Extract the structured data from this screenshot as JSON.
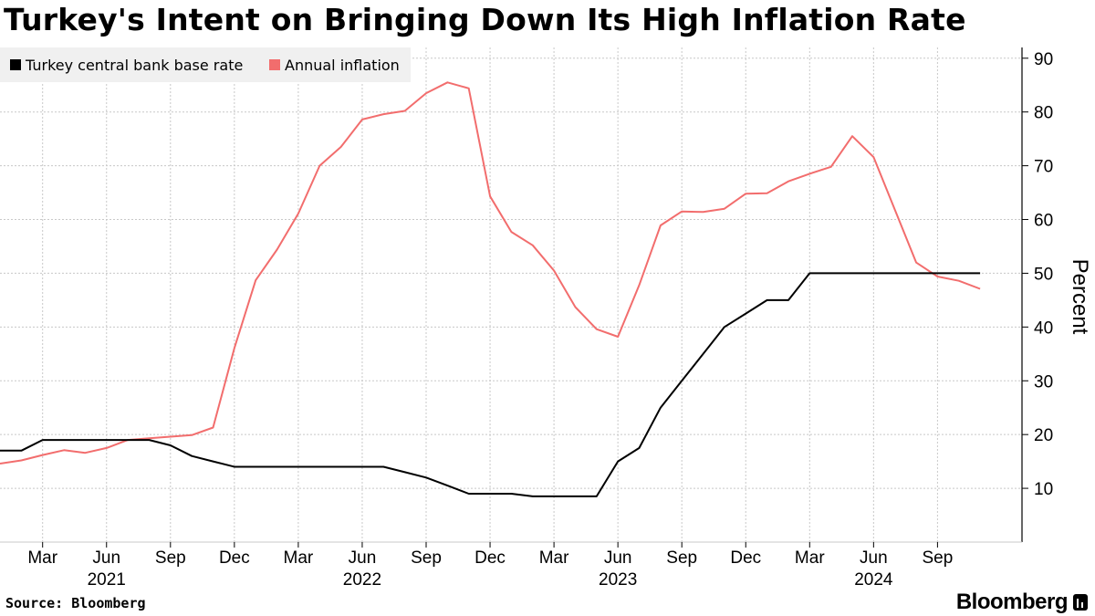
{
  "chart_data": {
    "type": "line",
    "title": "Turkey's Intent on Bringing Down Its High Inflation Rate",
    "ylabel": "Percent",
    "xlabel": "",
    "ylim": [
      0,
      92
    ],
    "yticks": [
      10,
      20,
      30,
      40,
      50,
      60,
      70,
      80,
      90
    ],
    "x_month_ticks": [
      "Mar",
      "Jun",
      "Sep",
      "Dec",
      "Mar",
      "Jun",
      "Sep",
      "Dec",
      "Mar",
      "Jun",
      "Sep",
      "Dec",
      "Mar",
      "Jun",
      "Sep"
    ],
    "x_year_labels": [
      "2021",
      "2022",
      "2023",
      "2024"
    ],
    "x": [
      "2021-01",
      "2021-02",
      "2021-03",
      "2021-04",
      "2021-05",
      "2021-06",
      "2021-07",
      "2021-08",
      "2021-09",
      "2021-10",
      "2021-11",
      "2021-12",
      "2022-01",
      "2022-02",
      "2022-03",
      "2022-04",
      "2022-05",
      "2022-06",
      "2022-07",
      "2022-08",
      "2022-09",
      "2022-10",
      "2022-11",
      "2022-12",
      "2023-01",
      "2023-02",
      "2023-03",
      "2023-04",
      "2023-05",
      "2023-06",
      "2023-07",
      "2023-08",
      "2023-09",
      "2023-10",
      "2023-11",
      "2023-12",
      "2024-01",
      "2024-02",
      "2024-03",
      "2024-04",
      "2024-05",
      "2024-06",
      "2024-07",
      "2024-08",
      "2024-09",
      "2024-10",
      "2024-11"
    ],
    "legend_position": "top-left",
    "series": [
      {
        "name": "Turkey central bank base rate",
        "color": "#000000",
        "values": [
          17,
          17,
          19,
          19,
          19,
          19,
          19,
          19,
          18,
          16,
          15,
          14,
          14,
          14,
          14,
          14,
          14,
          14,
          14,
          13,
          12,
          10.5,
          9,
          9,
          9,
          8.5,
          8.5,
          8.5,
          8.5,
          15,
          17.5,
          25,
          30,
          35,
          40,
          42.5,
          45,
          45,
          50,
          50,
          50,
          50,
          50,
          50,
          50,
          50,
          50
        ]
      },
      {
        "name": "Annual inflation",
        "color": "#f26d6d",
        "values": [
          14.6,
          15.2,
          16.2,
          17.1,
          16.6,
          17.5,
          19,
          19.3,
          19.6,
          19.9,
          21.3,
          36.1,
          48.7,
          54.4,
          61.1,
          70,
          73.5,
          78.6,
          79.6,
          80.2,
          83.5,
          85.5,
          84.4,
          64.3,
          57.7,
          55.2,
          50.5,
          43.7,
          39.6,
          38.2,
          47.8,
          58.9,
          61.5,
          61.4,
          62,
          64.8,
          64.9,
          67.1,
          68.5,
          69.8,
          75.5,
          71.6,
          61.8,
          52,
          49.4,
          48.6,
          47.1
        ]
      }
    ]
  },
  "footer": {
    "source": "Source: Bloomberg",
    "brand": "Bloomberg"
  },
  "icons": {
    "brand": "bloomberg-terminal-icon"
  }
}
